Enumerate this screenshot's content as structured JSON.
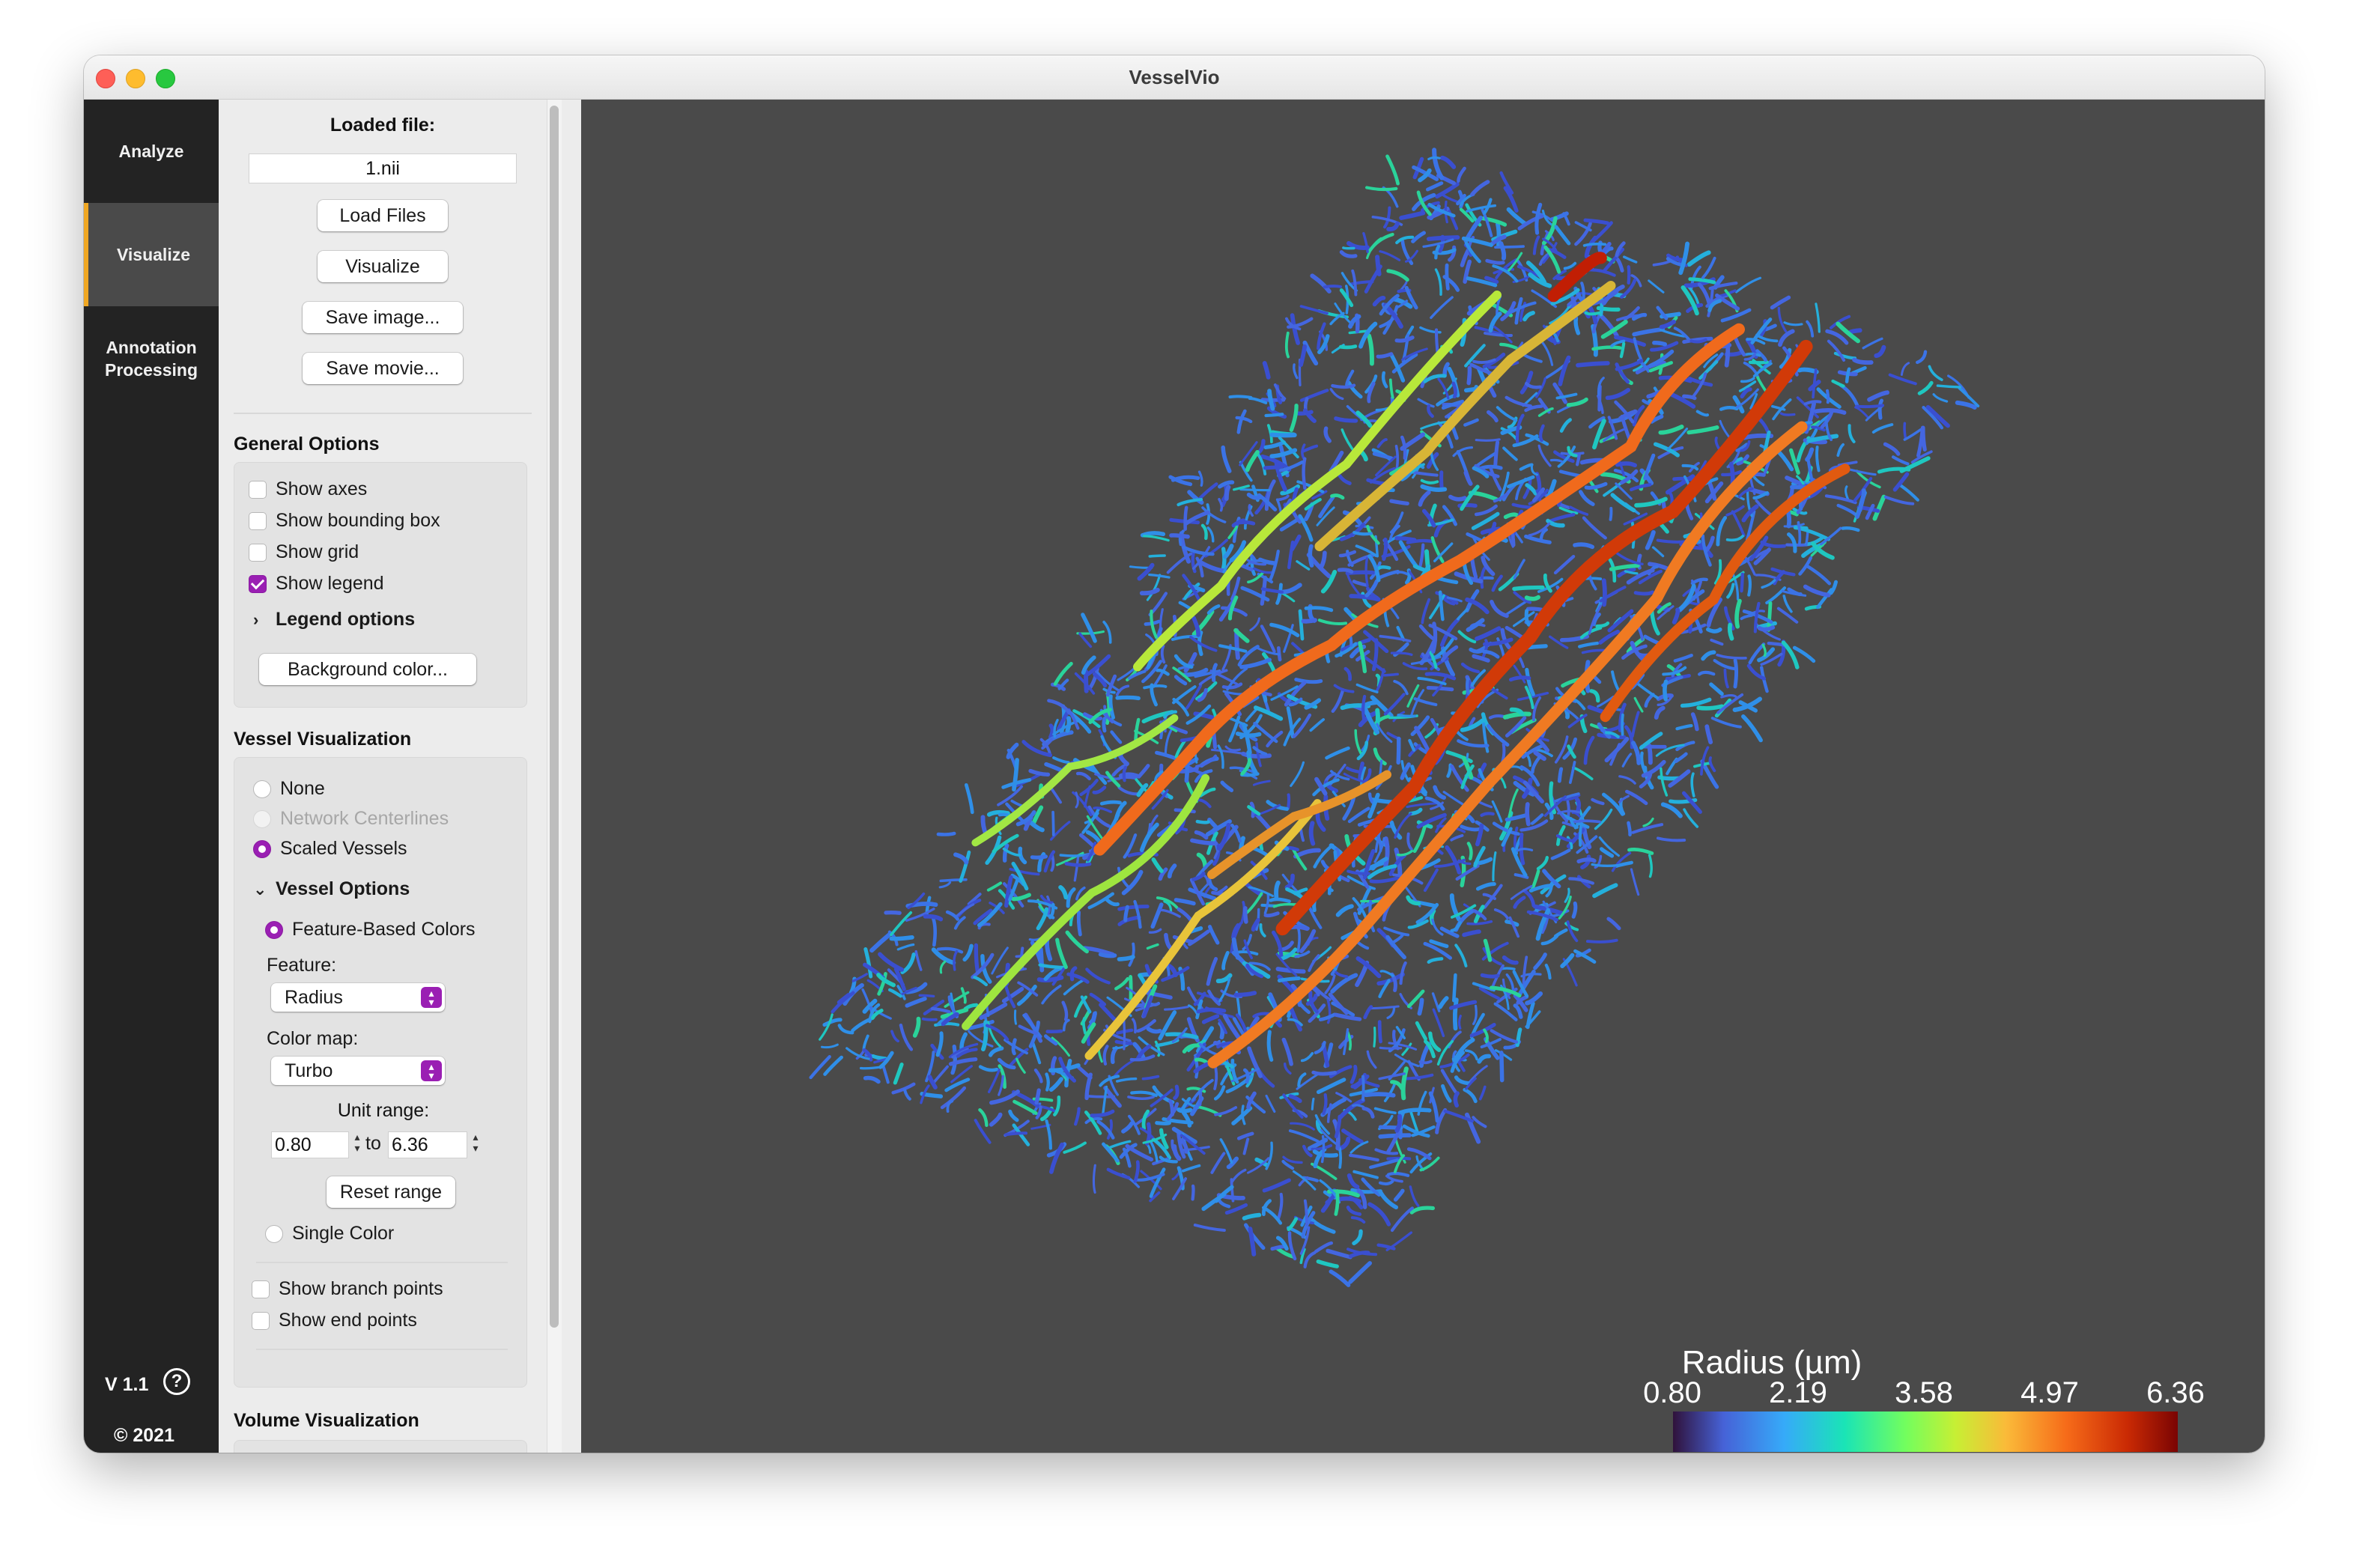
{
  "window": {
    "title": "VesselVio"
  },
  "sidebar": {
    "tabs": [
      {
        "label": "Analyze",
        "active": false
      },
      {
        "label": "Visualize",
        "active": true
      },
      {
        "label": "Annotation\nProcessing",
        "active": false
      }
    ],
    "version": "V 1.1",
    "help_icon": "?",
    "copyright": "© 2021"
  },
  "panel": {
    "loaded_file_label": "Loaded file:",
    "loaded_file_value": "1.nii",
    "buttons": {
      "load_files": "Load Files",
      "visualize": "Visualize",
      "save_image": "Save image...",
      "save_movie": "Save movie..."
    },
    "general": {
      "title": "General Options",
      "show_axes": {
        "label": "Show axes",
        "checked": false
      },
      "show_bounding_box": {
        "label": "Show bounding box",
        "checked": false
      },
      "show_grid": {
        "label": "Show grid",
        "checked": false
      },
      "show_legend": {
        "label": "Show legend",
        "checked": true
      },
      "legend_options": "Legend options",
      "background_color": "Background color..."
    },
    "vessel": {
      "title": "Vessel Visualization",
      "none": "None",
      "network_centerlines": "Network Centerlines",
      "scaled_vessels": "Scaled Vessels",
      "selected": "Scaled Vessels",
      "vessel_options": "Vessel Options",
      "feature_based_colors": "Feature-Based Colors",
      "feature_label": "Feature:",
      "feature_value": "Radius",
      "color_map_label": "Color map:",
      "color_map_value": "Turbo",
      "unit_range_label": "Unit range:",
      "range_min": "0.80",
      "range_to": "to",
      "range_max": "6.36",
      "reset_range": "Reset range",
      "single_color": "Single Color",
      "show_branch_points": {
        "label": "Show branch points",
        "checked": false
      },
      "show_end_points": {
        "label": "Show end points",
        "checked": false
      }
    },
    "volume": {
      "title": "Volume Visualization"
    }
  },
  "viewport": {
    "background": "#4a4a4a",
    "legend": {
      "title": "Radius (µm)",
      "ticks": [
        "0.80",
        "2.19",
        "3.58",
        "4.97",
        "6.36"
      ],
      "colormap": "Turbo"
    }
  }
}
